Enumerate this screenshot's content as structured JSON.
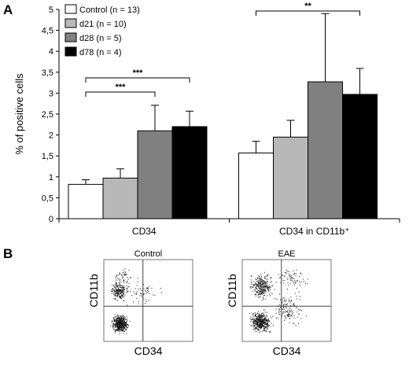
{
  "panels": {
    "a_label": "A",
    "b_label": "B"
  },
  "chart_data": {
    "type": "bar",
    "ylabel": "% of positive cells",
    "ylim": [
      0,
      5
    ],
    "yticks": [
      "0",
      "0,5",
      "1",
      "1,5",
      "2",
      "2,5",
      "3",
      "3,5",
      "4",
      "4,5",
      "5"
    ],
    "categories": [
      "CD34",
      "CD34 in CD11b⁺"
    ],
    "series": [
      {
        "name": "Control (n = 13)",
        "color": "#ffffff",
        "values": [
          0.82,
          1.57
        ],
        "errors": [
          0.11,
          0.28
        ]
      },
      {
        "name": "d21 (n = 10)",
        "color": "#b8b8b8",
        "values": [
          0.97,
          1.95
        ],
        "errors": [
          0.22,
          0.4
        ]
      },
      {
        "name": "d28 (n = 5)",
        "color": "#808080",
        "values": [
          2.1,
          3.27
        ],
        "errors": [
          0.61,
          1.63
        ]
      },
      {
        "name": "d78 (n = 4)",
        "color": "#000000",
        "values": [
          2.2,
          2.97
        ],
        "errors": [
          0.37,
          0.62
        ]
      }
    ],
    "legend_position": "top-left",
    "grid": false,
    "significance": [
      {
        "label": "***",
        "category": 0,
        "from_series": 0,
        "to_series": 2
      },
      {
        "label": "***",
        "category": 0,
        "from_series": 0,
        "to_series": 3
      },
      {
        "label": "**",
        "category": 1,
        "from_series": 0,
        "to_series": 3
      }
    ]
  },
  "flow": {
    "plots": [
      {
        "title": "Control",
        "xlabel": "CD34",
        "ylabel": "CD11b"
      },
      {
        "title": "EAE",
        "xlabel": "CD34",
        "ylabel": "CD11b"
      }
    ]
  }
}
